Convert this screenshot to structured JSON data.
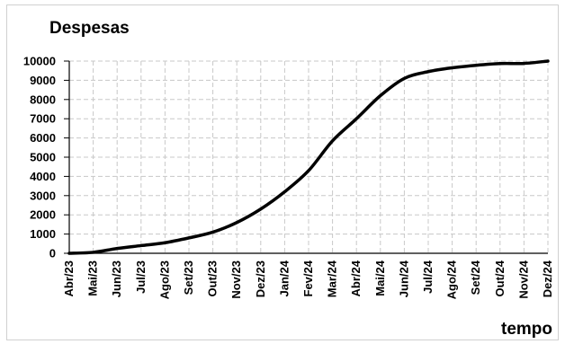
{
  "chart_data": {
    "type": "line",
    "title": "Despesas",
    "xlabel": "tempo",
    "ylabel": "",
    "categories": [
      "Abr/23",
      "Mai/23",
      "Jun/23",
      "Jul/23",
      "Ago/23",
      "Set/23",
      "Out/23",
      "Nov/23",
      "Dez/23",
      "Jan/24",
      "Fev/24",
      "Mar/24",
      "Abr/24",
      "Mai/24",
      "Jun/24",
      "Jul/24",
      "Ago/24",
      "Set/24",
      "Out/24",
      "Nov/24",
      "Dez/24"
    ],
    "series": [
      {
        "values": [
          0,
          50,
          250,
          400,
          550,
          800,
          1100,
          1600,
          2300,
          3200,
          4300,
          5850,
          7000,
          8200,
          9100,
          9450,
          9650,
          9780,
          9870,
          9880,
          10000
        ]
      }
    ],
    "ylim": [
      0,
      10000
    ],
    "yticks": [
      0,
      1000,
      2000,
      3000,
      4000,
      5000,
      6000,
      7000,
      8000,
      9000,
      10000
    ],
    "grid": true,
    "legend": "none",
    "colors": {
      "line": "#000000",
      "grid": "#c8c8c8",
      "axis": "#000000"
    }
  }
}
